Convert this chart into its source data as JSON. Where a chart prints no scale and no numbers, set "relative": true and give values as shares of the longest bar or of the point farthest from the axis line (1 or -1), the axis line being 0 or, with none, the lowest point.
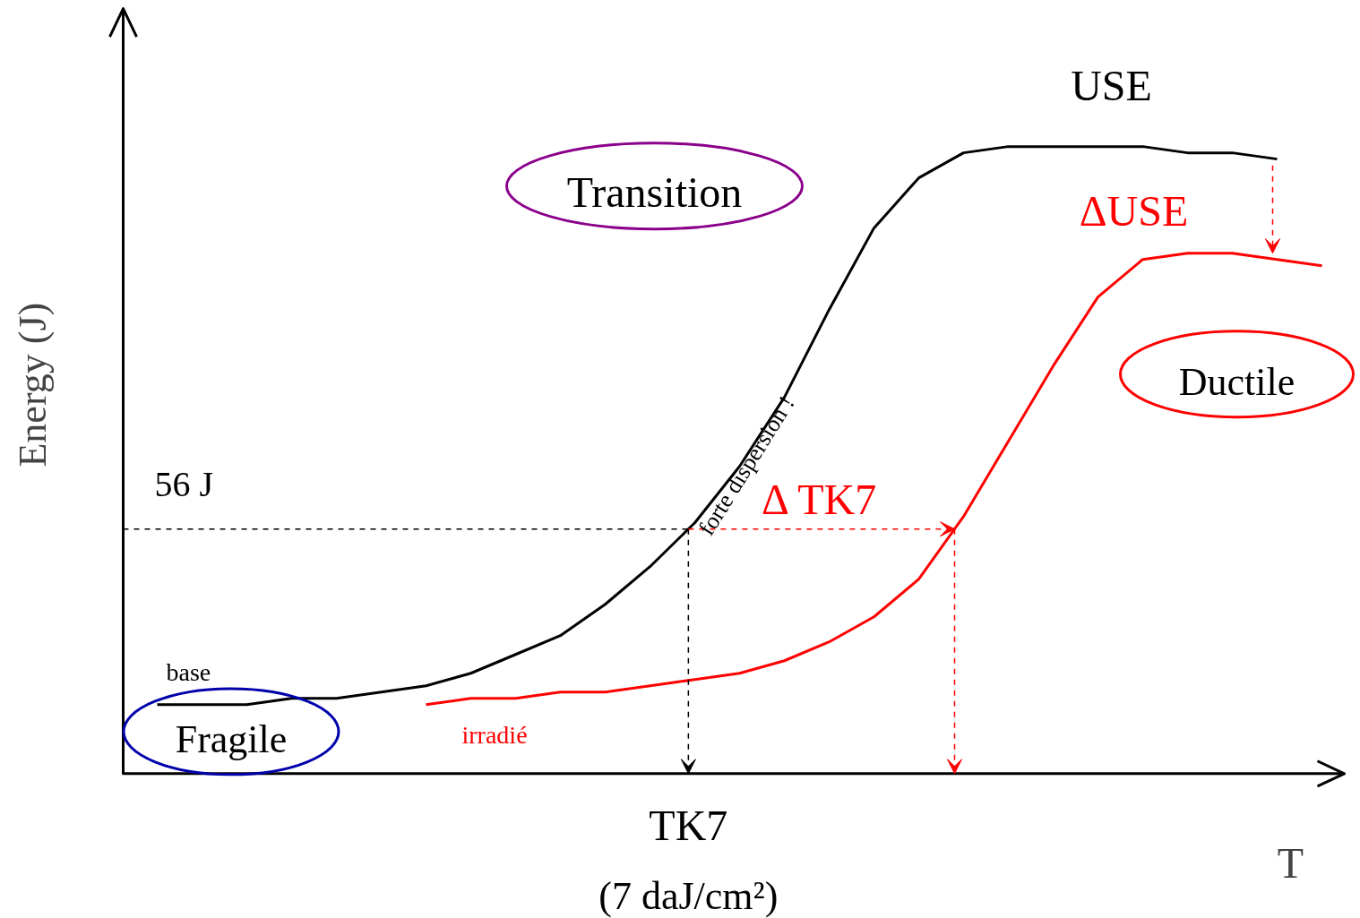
{
  "chart_data": {
    "type": "line",
    "relative": true,
    "xlabel": "T",
    "ylabel": "Energy (J)",
    "categories": [
      null,
      null,
      null,
      null,
      null,
      null,
      null,
      null,
      null,
      null,
      null,
      null,
      null,
      null,
      null,
      null,
      null,
      null,
      null,
      null,
      null,
      null,
      null,
      null,
      null,
      null,
      null
    ],
    "series": [
      {
        "name": "base",
        "color": "#000000",
        "values": [
          0.11,
          0.11,
          0.11,
          0.12,
          0.12,
          0.13,
          0.14,
          0.16,
          0.19,
          0.22,
          0.27,
          0.33,
          0.4,
          0.49,
          0.6,
          0.74,
          0.87,
          0.95,
          0.99,
          1.0,
          1.0,
          1.0,
          1.0,
          0.99,
          0.99,
          0.98,
          null
        ]
      },
      {
        "name": "irradié",
        "color": "#ff0000",
        "values": [
          null,
          null,
          null,
          null,
          null,
          null,
          0.11,
          0.12,
          0.12,
          0.13,
          0.13,
          0.14,
          0.15,
          0.16,
          0.18,
          0.21,
          0.25,
          0.31,
          0.41,
          0.53,
          0.65,
          0.76,
          0.82,
          0.83,
          0.83,
          0.82,
          0.81
        ]
      }
    ],
    "ref_lines": [
      {
        "axis": "y",
        "value": 0.39,
        "label": "56 J",
        "color": "#000000",
        "line_style": "dashed"
      }
    ],
    "annotations": [
      "USE",
      "ΔUSE",
      "Δ TK7",
      "Transition",
      "Fragile",
      "Ductile",
      "forte dispersion !",
      "TK7",
      "(7 daJ/cm²)"
    ],
    "grid": false,
    "line_style": "solid",
    "marker": "none"
  }
}
